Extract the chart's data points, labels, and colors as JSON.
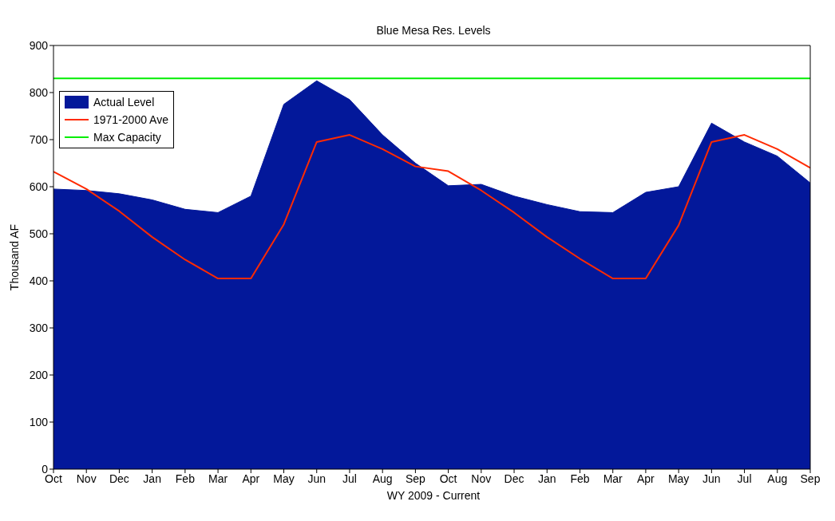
{
  "chart_data": {
    "type": "area",
    "title": "Blue Mesa Res. Levels",
    "xlabel": "WY 2009 - Current",
    "ylabel": "Thousand AF",
    "categories": [
      "Oct",
      "Nov",
      "Dec",
      "Jan",
      "Feb",
      "Mar",
      "Apr",
      "May",
      "Jun",
      "Jul",
      "Aug",
      "Sep",
      "Oct",
      "Nov",
      "Dec",
      "Jan",
      "Feb",
      "Mar",
      "Apr",
      "May",
      "Jun",
      "Jul",
      "Aug",
      "Sep"
    ],
    "series": [
      {
        "name": "Actual Level",
        "color": "#03189a",
        "values": [
          595,
          592,
          585,
          572,
          552,
          545,
          580,
          775,
          825,
          785,
          710,
          650,
          602,
          605,
          580,
          562,
          547,
          545,
          588,
          600,
          735,
          695,
          665,
          608
        ]
      },
      {
        "name": "1971-2000 Ave",
        "type": "line",
        "color": "#ff2a00",
        "values": [
          632,
          595,
          548,
          493,
          445,
          405,
          405,
          520,
          695,
          710,
          680,
          643,
          633,
          592,
          545,
          493,
          447,
          405,
          405,
          518,
          695,
          710,
          680,
          640
        ]
      },
      {
        "name": "Max Capacity",
        "type": "line",
        "color": "#00ee00",
        "values": [
          830,
          830,
          830,
          830,
          830,
          830,
          830,
          830,
          830,
          830,
          830,
          830,
          830,
          830,
          830,
          830,
          830,
          830,
          830,
          830,
          830,
          830,
          830,
          830
        ]
      }
    ],
    "ylim": [
      0,
      900
    ],
    "yticks": [
      0,
      100,
      200,
      300,
      400,
      500,
      600,
      700,
      800,
      900
    ],
    "grid": false,
    "legend": "top left",
    "marker": "none",
    "line_style": "solid"
  }
}
